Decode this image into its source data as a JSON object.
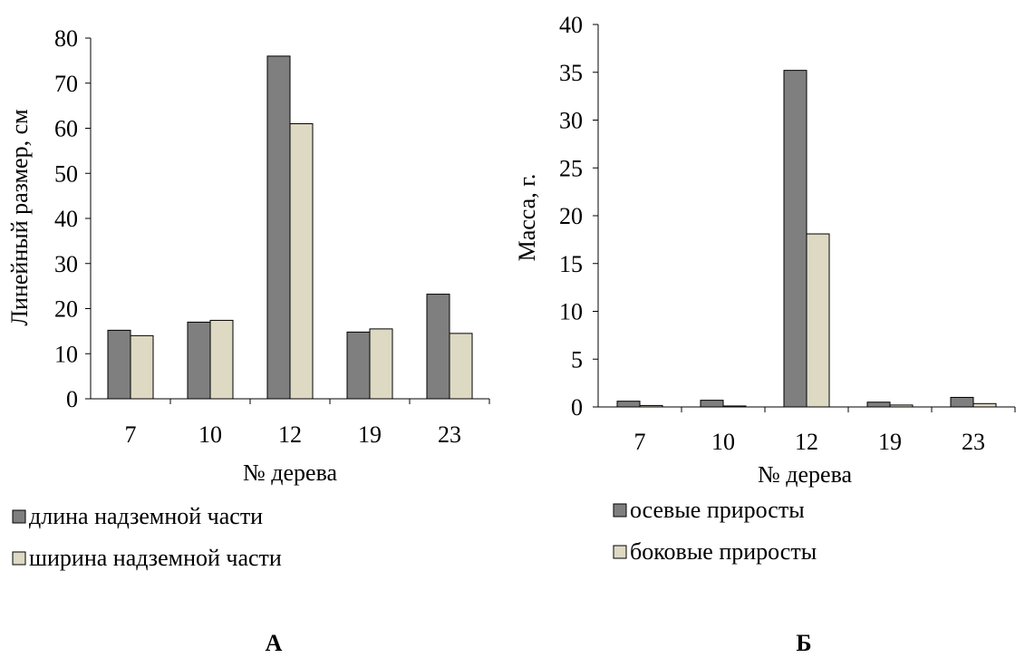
{
  "colors": {
    "series1": "#7f7f7f",
    "series2": "#ddd9c3",
    "stroke": "#000000"
  },
  "panels": [
    {
      "label": "А"
    },
    {
      "label": "Б"
    }
  ],
  "chart_data": [
    {
      "type": "bar",
      "categories": [
        "7",
        "10",
        "12",
        "19",
        "23"
      ],
      "series": [
        {
          "name": "длина надземной части",
          "values": [
            15.2,
            17.0,
            76.0,
            14.8,
            23.2
          ]
        },
        {
          "name": "ширина надземной части",
          "values": [
            14.0,
            17.4,
            61.0,
            15.5,
            14.5
          ]
        }
      ],
      "xlabel": "№ дерева",
      "ylabel": "Линейный размер, см",
      "ylim": [
        0,
        80
      ],
      "yticks": [
        0,
        10,
        20,
        30,
        40,
        50,
        60,
        70,
        80
      ],
      "grid": false,
      "legend": "bottom-left"
    },
    {
      "type": "bar",
      "categories": [
        "7",
        "10",
        "12",
        "19",
        "23"
      ],
      "series": [
        {
          "name": "осевые приросты",
          "values": [
            0.6,
            0.7,
            35.2,
            0.5,
            1.0
          ]
        },
        {
          "name": "боковые приросты",
          "values": [
            0.15,
            0.1,
            18.1,
            0.2,
            0.35
          ]
        }
      ],
      "xlabel": "№ дерева",
      "ylabel": "Масса, г.",
      "ylim": [
        0,
        40
      ],
      "yticks": [
        0,
        5,
        10,
        15,
        20,
        25,
        30,
        35,
        40
      ],
      "grid": false,
      "legend": "bottom-left"
    }
  ]
}
